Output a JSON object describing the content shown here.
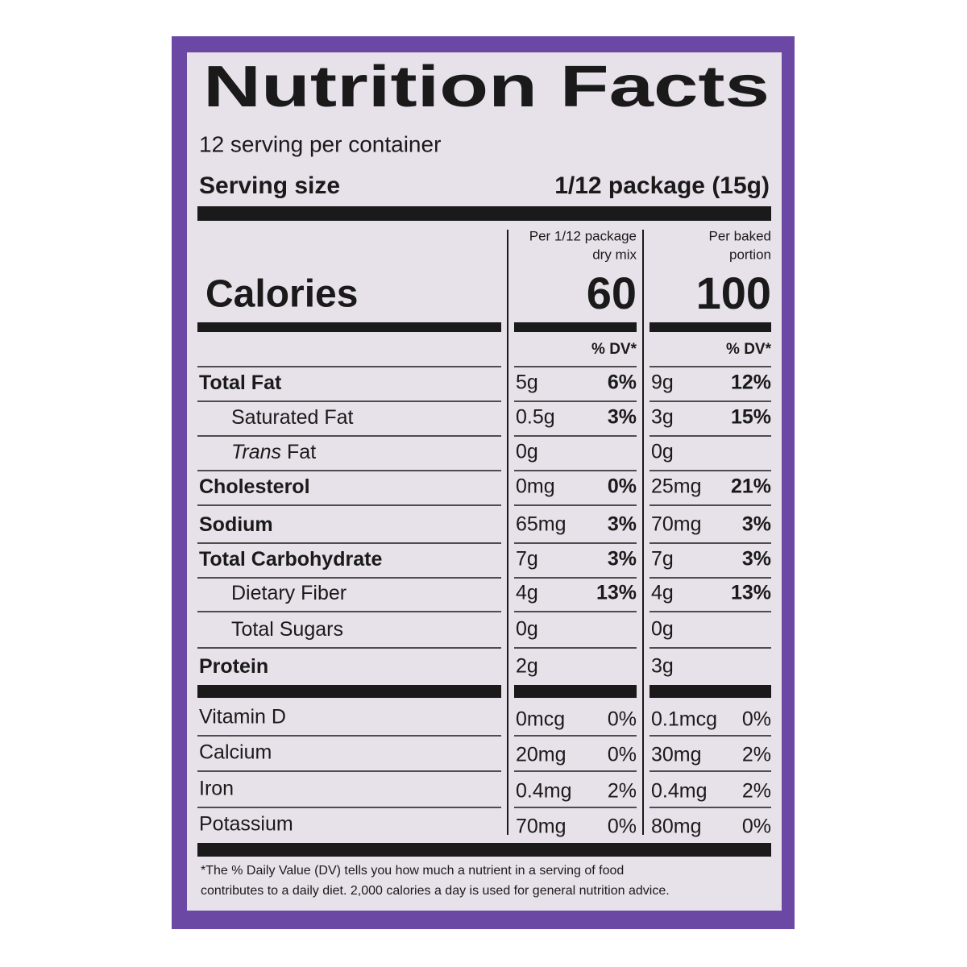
{
  "title": "Nutrition Facts",
  "servings": "12 serving per container",
  "serving_size": {
    "label": "Serving size",
    "value": "1/12 package (15g)"
  },
  "calories_label": "Calories",
  "columns": [
    {
      "header": [
        "Per 1/12 package",
        "dry mix"
      ],
      "calories": "60",
      "dv_header": "% DV*"
    },
    {
      "header": [
        "Per baked",
        "portion"
      ],
      "calories": "100",
      "dv_header": "% DV*"
    }
  ],
  "nutrients": [
    {
      "name": "Total Fat",
      "bold": true,
      "indent": false,
      "values": [
        [
          "5g",
          "6%"
        ],
        [
          "9g",
          "12%"
        ]
      ]
    },
    {
      "name": "Saturated Fat",
      "bold": false,
      "indent": true,
      "values": [
        [
          "0.5g",
          "3%"
        ],
        [
          "3g",
          "15%"
        ]
      ]
    },
    {
      "name_italic": "Trans",
      "name": "Fat",
      "bold": false,
      "indent": true,
      "values": [
        [
          "0g",
          null
        ],
        [
          "0g",
          null
        ]
      ]
    },
    {
      "name": "Cholesterol",
      "bold": true,
      "indent": false,
      "values": [
        [
          "0mg",
          "0%"
        ],
        [
          "25mg",
          "21%"
        ]
      ]
    },
    {
      "name": "Sodium",
      "bold": true,
      "indent": false,
      "values": [
        [
          "65mg",
          "3%"
        ],
        [
          "70mg",
          "3%"
        ]
      ]
    },
    {
      "name": "Total Carbohydrate",
      "bold": true,
      "indent": false,
      "values": [
        [
          "7g",
          "3%"
        ],
        [
          "7g",
          "3%"
        ]
      ]
    },
    {
      "name": "Dietary Fiber",
      "bold": false,
      "indent": true,
      "values": [
        [
          "4g",
          "13%"
        ],
        [
          "4g",
          "13%"
        ]
      ]
    },
    {
      "name": "Total Sugars",
      "bold": false,
      "indent": true,
      "values": [
        [
          "0g",
          null
        ],
        [
          "0g",
          null
        ]
      ]
    },
    {
      "name": "Protein",
      "bold": true,
      "indent": false,
      "values": [
        [
          "2g",
          null
        ],
        [
          "3g",
          null
        ]
      ]
    }
  ],
  "vitamins": [
    {
      "name": "Vitamin D",
      "values": [
        [
          "0mcg",
          "0%"
        ],
        [
          "0.1mcg",
          "0%"
        ]
      ]
    },
    {
      "name": "Calcium",
      "values": [
        [
          "20mg",
          "0%"
        ],
        [
          "30mg",
          "2%"
        ]
      ]
    },
    {
      "name": "Iron",
      "values": [
        [
          "0.4mg",
          "2%"
        ],
        [
          "0.4mg",
          "2%"
        ]
      ]
    },
    {
      "name": "Potassium",
      "values": [
        [
          "70mg",
          "0%"
        ],
        [
          "80mg",
          "0%"
        ]
      ]
    }
  ],
  "footnote": [
    "*The % Daily Value (DV) tells you how much a nutrient in a serving of food",
    "contributes to a daily diet. 2,000 calories a day is used for general nutrition advice."
  ]
}
